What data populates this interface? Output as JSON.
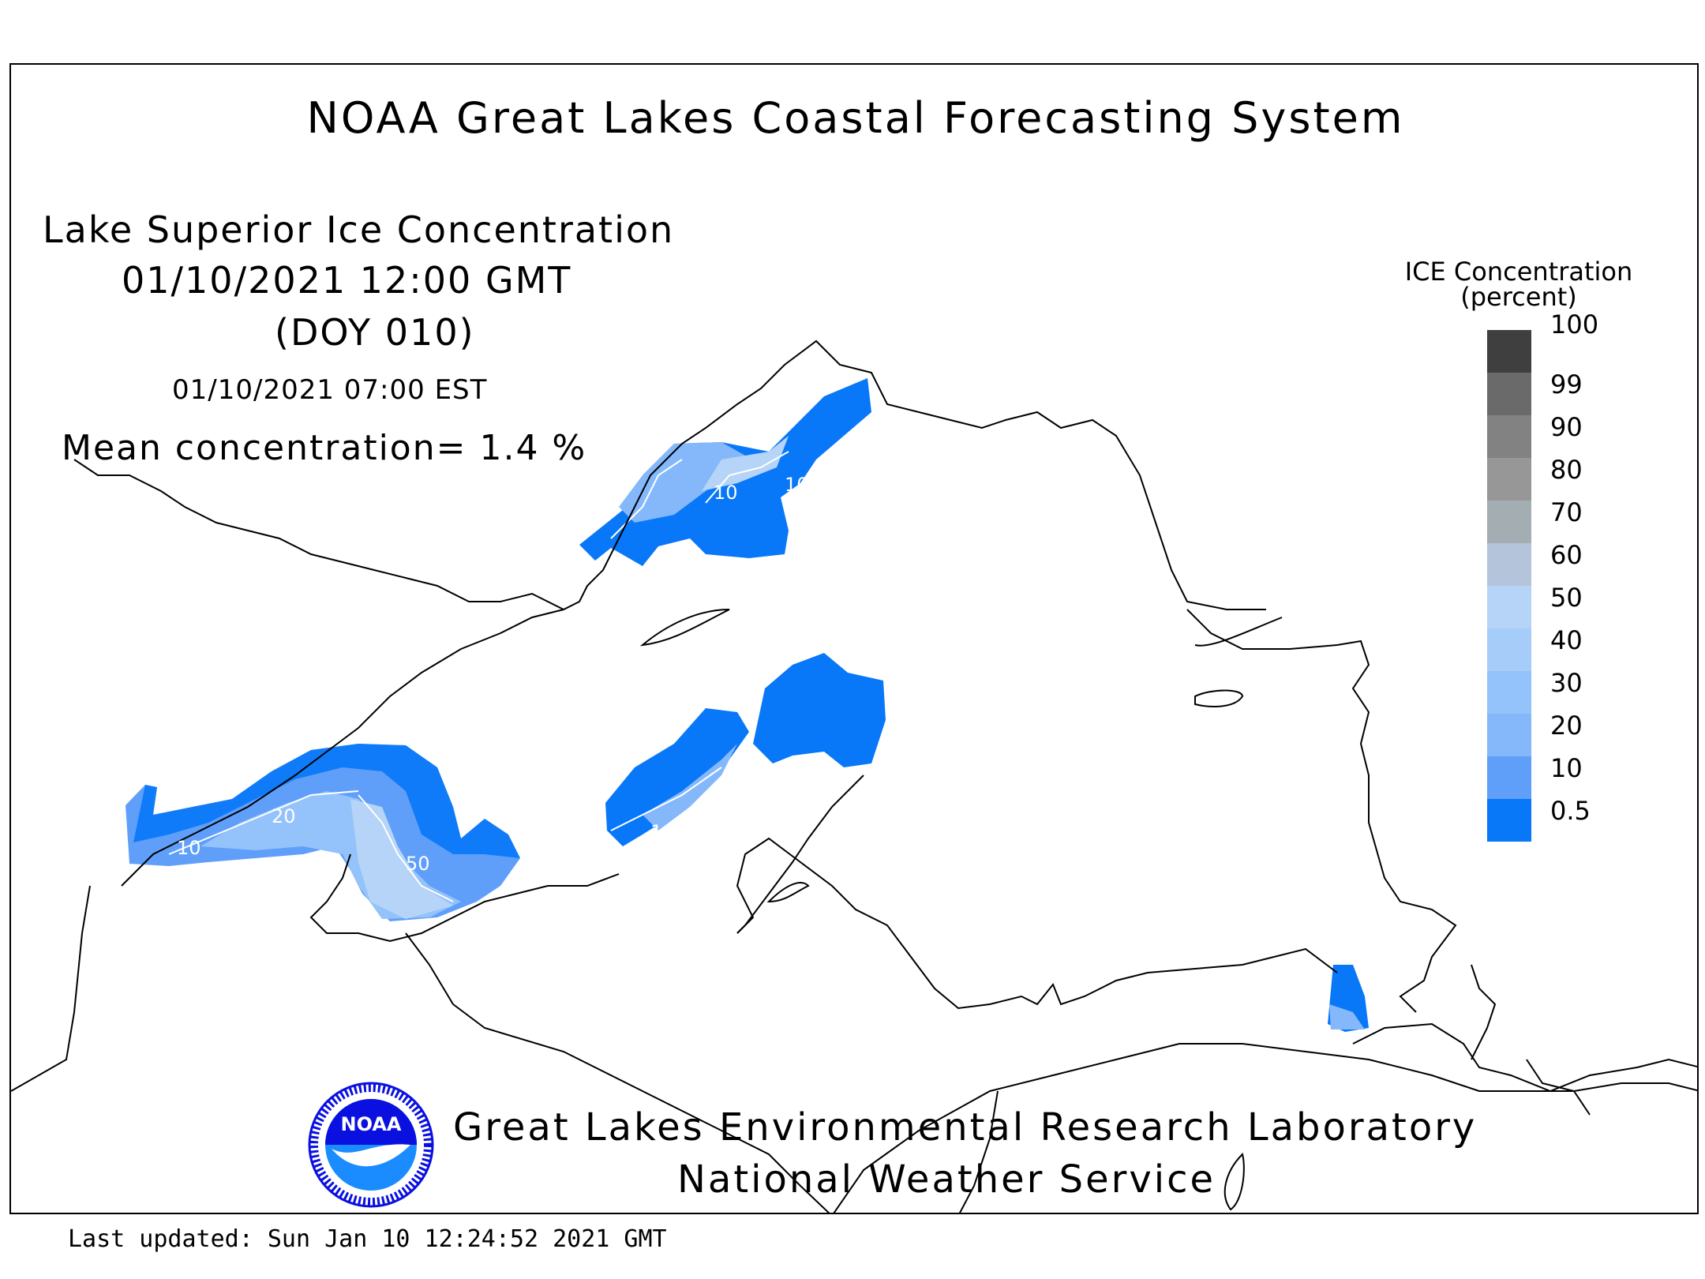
{
  "header": {
    "title": "NOAA Great Lakes Coastal Forecasting System"
  },
  "plot_info": {
    "title": "Lake Superior Ice Concentration",
    "datetime_gmt": "01/10/2021 12:00 GMT",
    "doy": "(DOY 010)",
    "datetime_local": "01/10/2021 07:00 EST",
    "mean_concentration": "Mean concentration= 1.4 %"
  },
  "legend": {
    "title_line1": "ICE Concentration",
    "title_line2": "(percent)",
    "levels": [
      {
        "label": "100",
        "color": "#3f3f3f"
      },
      {
        "label": "99",
        "color": "#6a6a6a"
      },
      {
        "label": "90",
        "color": "#828282"
      },
      {
        "label": "80",
        "color": "#979797"
      },
      {
        "label": "70",
        "color": "#a4aeb2"
      },
      {
        "label": "60",
        "color": "#b4c4db"
      },
      {
        "label": "50",
        "color": "#b6d4f7"
      },
      {
        "label": "40",
        "color": "#a6cdfa"
      },
      {
        "label": "30",
        "color": "#94c2fa"
      },
      {
        "label": "20",
        "color": "#84b8fb"
      },
      {
        "label": "10",
        "color": "#5f9ffa"
      },
      {
        "label": "0.5",
        "color": "#0877f8"
      }
    ]
  },
  "contour_labels": [
    "10",
    "10",
    "10",
    "20",
    "50",
    "10"
  ],
  "credits": {
    "line1": "Great Lakes Environmental Research Laboratory",
    "line2": "National Weather Service"
  },
  "logo": {
    "text": "NOAA",
    "color_blue": "#0a10e0",
    "color_light": "#1a8cff"
  },
  "footer": {
    "last_updated": "Last updated: Sun Jan 10 12:24:52 2021 GMT"
  }
}
